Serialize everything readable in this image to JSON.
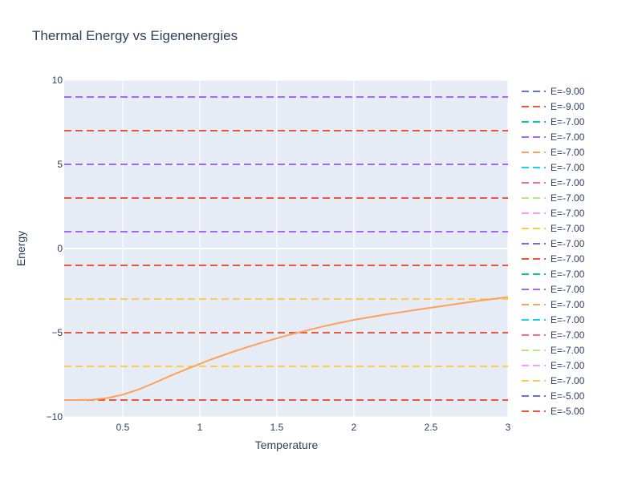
{
  "chart_data": {
    "type": "line",
    "title": "Thermal Energy vs Eigenenergies",
    "xlabel": "Temperature",
    "ylabel": "Energy",
    "xlim": [
      0.12,
      3.0
    ],
    "ylim": [
      -10,
      10
    ],
    "x_ticks": [
      0.5,
      1,
      1.5,
      2,
      2.5,
      3
    ],
    "x_tick_labels": [
      "0.5",
      "1",
      "1.5",
      "2",
      "2.5",
      "3"
    ],
    "y_ticks": [
      -10,
      -5,
      0,
      5,
      10
    ],
    "y_tick_labels": [
      "−10",
      "−5",
      "0",
      "5",
      "10"
    ],
    "grid": true,
    "legend_placement": "right",
    "legend": [
      {
        "label": "E=-9.00",
        "color": "#636efa"
      },
      {
        "label": "E=-9.00",
        "color": "#EF553B"
      },
      {
        "label": "E=-7.00",
        "color": "#00cc96"
      },
      {
        "label": "E=-7.00",
        "color": "#ab63fa"
      },
      {
        "label": "E=-7.00",
        "color": "#FFA15A"
      },
      {
        "label": "E=-7.00",
        "color": "#19d3f3"
      },
      {
        "label": "E=-7.00",
        "color": "#FF6692"
      },
      {
        "label": "E=-7.00",
        "color": "#B6E880"
      },
      {
        "label": "E=-7.00",
        "color": "#FF97FF"
      },
      {
        "label": "E=-7.00",
        "color": "#FECB52"
      },
      {
        "label": "E=-7.00",
        "color": "#636efa"
      },
      {
        "label": "E=-7.00",
        "color": "#EF553B"
      },
      {
        "label": "E=-7.00",
        "color": "#00cc96"
      },
      {
        "label": "E=-7.00",
        "color": "#ab63fa"
      },
      {
        "label": "E=-7.00",
        "color": "#FFA15A"
      },
      {
        "label": "E=-7.00",
        "color": "#19d3f3"
      },
      {
        "label": "E=-7.00",
        "color": "#FF6692"
      },
      {
        "label": "E=-7.00",
        "color": "#B6E880"
      },
      {
        "label": "E=-7.00",
        "color": "#FF97FF"
      },
      {
        "label": "E=-7.00",
        "color": "#FECB52"
      },
      {
        "label": "E=-5.00",
        "color": "#636efa"
      },
      {
        "label": "E=-5.00",
        "color": "#EF553B"
      }
    ],
    "hlines": [
      {
        "y": 9,
        "color": "#ab63fa"
      },
      {
        "y": 7,
        "color": "#EF553B"
      },
      {
        "y": 5,
        "color": "#ab63fa"
      },
      {
        "y": 3,
        "color": "#EF553B"
      },
      {
        "y": 1,
        "color": "#ab63fa"
      },
      {
        "y": -1,
        "color": "#EF553B"
      },
      {
        "y": -3,
        "color": "#FECB52"
      },
      {
        "y": -5,
        "color": "#EF553B"
      },
      {
        "y": -7,
        "color": "#FECB52"
      },
      {
        "y": -9,
        "color": "#EF553B"
      }
    ],
    "series": [
      {
        "color": "#FFA15A",
        "x": [
          0.12,
          0.2,
          0.3,
          0.4,
          0.5,
          0.6,
          0.7,
          0.8,
          0.9,
          1.0,
          1.1,
          1.2,
          1.3,
          1.4,
          1.5,
          1.6,
          1.7,
          1.8,
          1.9,
          2.0,
          2.2,
          2.4,
          2.6,
          2.8,
          3.0
        ],
        "y": [
          -9.0,
          -9.0,
          -8.98,
          -8.88,
          -8.68,
          -8.38,
          -8.0,
          -7.6,
          -7.22,
          -6.85,
          -6.5,
          -6.18,
          -5.88,
          -5.6,
          -5.33,
          -5.08,
          -4.85,
          -4.63,
          -4.43,
          -4.24,
          -3.93,
          -3.65,
          -3.38,
          -3.12,
          -2.88
        ]
      }
    ]
  },
  "colors": {
    "plot_bg": "#E5ECF6",
    "grid": "#ffffff",
    "text": "#2a3f5f"
  }
}
